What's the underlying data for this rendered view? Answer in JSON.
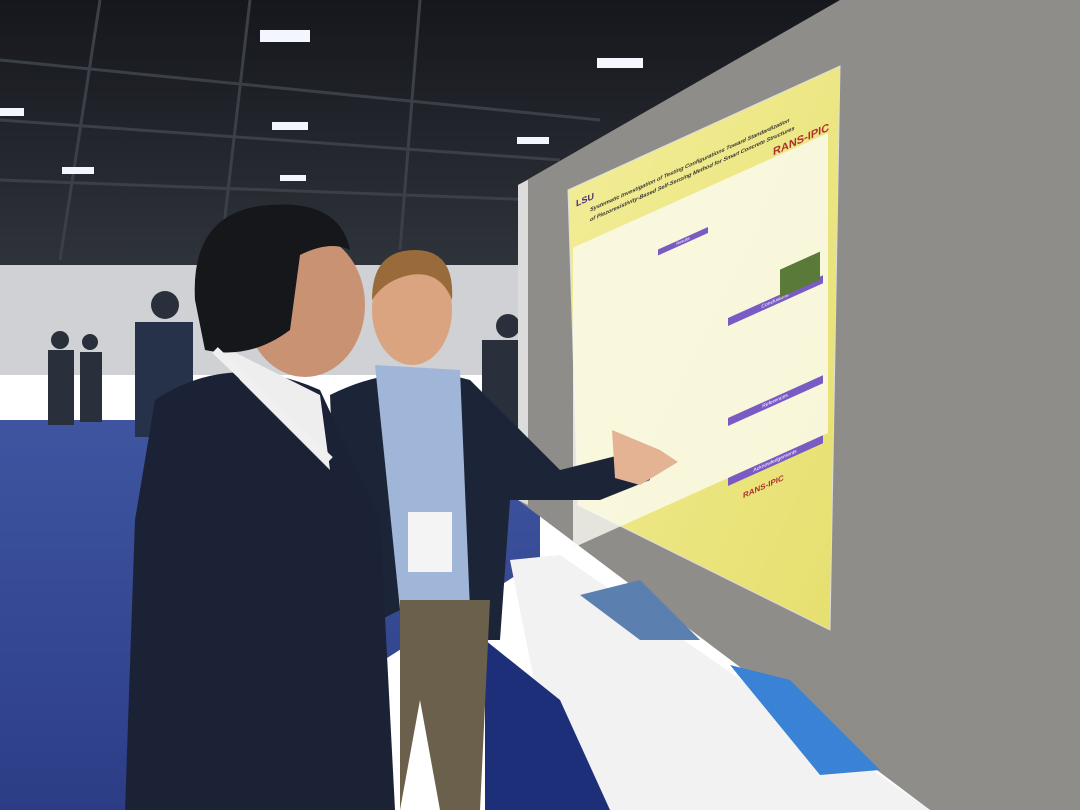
{
  "poster": {
    "institution": "LSU",
    "logo": "RANS-IPIC",
    "title_lines": [
      "Systematic Investigation of Testing Configurations Toward Standardization",
      "of Piezoresistivity-Based Self-Sensing Method for Smart Concrete Structures"
    ],
    "sections": [
      "Results",
      "Conclusions",
      "References",
      "Acknowledgements"
    ],
    "footer_logo": "RANS-IPIC"
  }
}
